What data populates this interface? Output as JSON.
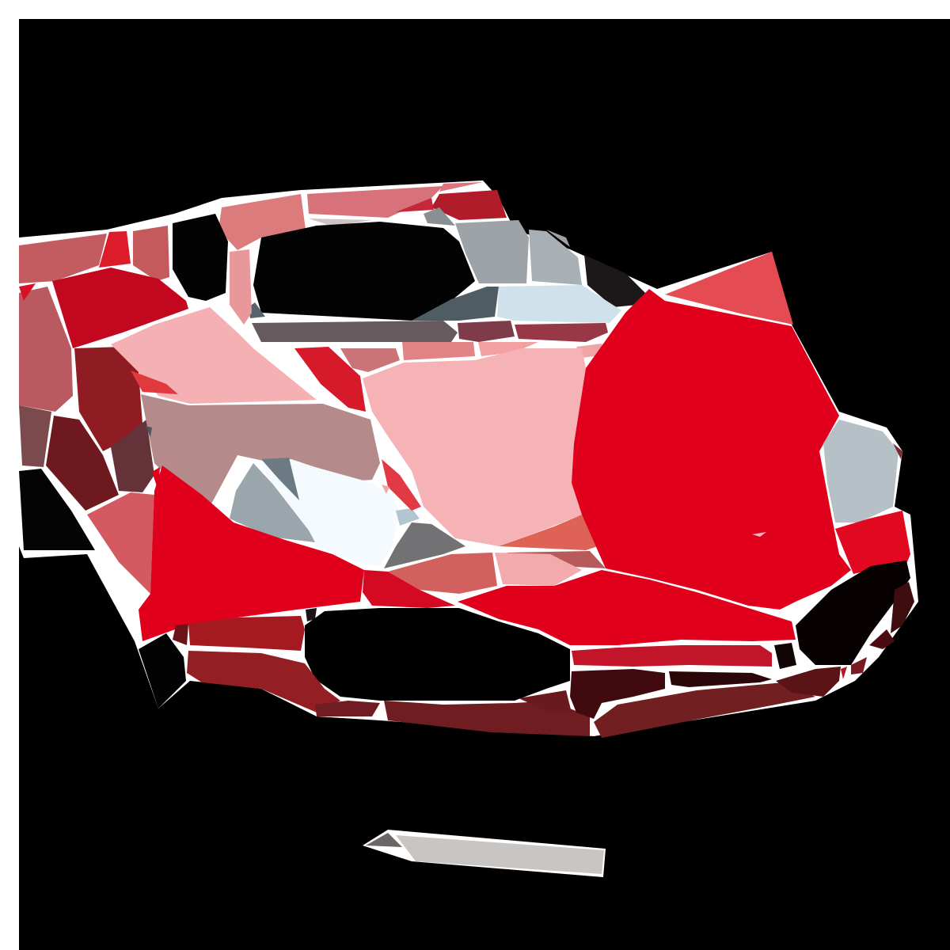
{
  "artwork": {
    "subject": "red-sports-car",
    "style": "low-poly-mosaic",
    "palette": {
      "background": "#000000",
      "frame": "#ffffff",
      "primary_red": "#e0001b",
      "light_pink": "#f5b3b5",
      "dark_red": "#7a1a22",
      "grey_blue": "#9aa6ad",
      "light_blue": "#cfe3ec",
      "plate_grey": "#c9c5c2"
    }
  }
}
